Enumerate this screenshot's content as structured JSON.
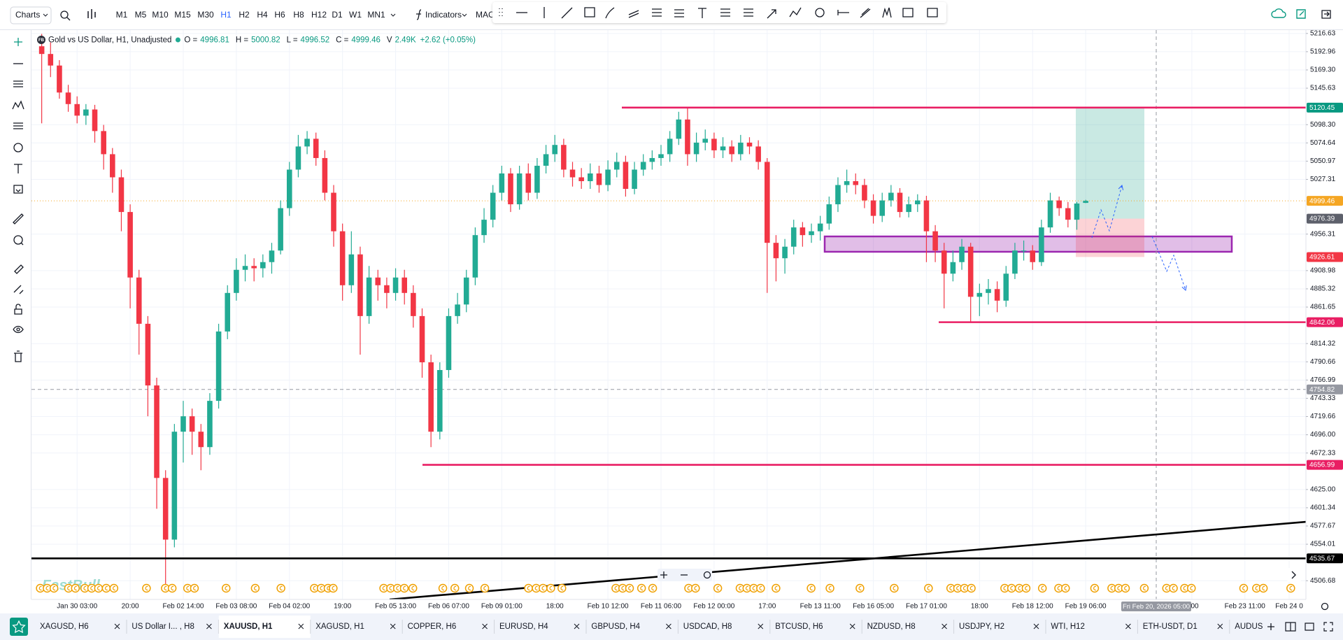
{
  "toolbar": {
    "chart_menu": "Charts",
    "indicators": "Indicators",
    "cut_item": "MAC",
    "timeframes": [
      {
        "label": "M1"
      },
      {
        "label": "M5"
      },
      {
        "label": "M10"
      },
      {
        "label": "M15"
      },
      {
        "label": "M30"
      },
      {
        "label": "H1",
        "active": true
      },
      {
        "label": "H2"
      },
      {
        "label": "H4"
      },
      {
        "label": "H6"
      },
      {
        "label": "H8"
      },
      {
        "label": "H12"
      },
      {
        "label": "D1"
      },
      {
        "label": "W1"
      },
      {
        "label": "MN1"
      }
    ]
  },
  "header": {
    "logo": "FB",
    "symbol": "Gold vs US Dollar, H1, Unadjusted",
    "o_label": "O =",
    "h_label": "H =",
    "l_label": "L =",
    "c_label": "C =",
    "v_label": "V",
    "volume": "2.49K",
    "change": "+2.62 (+0.05%)"
  },
  "watermark": "FastBull",
  "chart_data": {
    "type": "candlestick",
    "up_color": "#22ab94",
    "down_color": "#f23645",
    "grid": true,
    "ylim": [
      4482.4,
      5221.0
    ],
    "yticks": [
      5216.63,
      5192.96,
      {
        "value": 5169.3,
        "label": "5169.30"
      },
      5145.63,
      {
        "value": 5098.3,
        "label": "5098.30"
      },
      5074.64,
      5050.97,
      5027.31,
      4956.31,
      4908.98,
      4885.32,
      4861.65,
      4814.32,
      4790.66,
      4766.99,
      4743.33,
      4719.66,
      {
        "value": 4696,
        "label": "4696.00"
      },
      4672.33,
      {
        "value": 4625,
        "label": "4625.00"
      },
      4601.34,
      4577.67,
      4554.01,
      4506.68
    ],
    "categories": [
      null,
      null,
      null,
      null,
      "Jan 30 03:00",
      null,
      null,
      null,
      null,
      null,
      "20:00",
      null,
      null,
      null,
      null,
      null,
      "Feb 02 14:00",
      null,
      null,
      null,
      null,
      null,
      "Feb 03 08:00",
      null,
      null,
      null,
      null,
      null,
      "Feb 04 02:00",
      null,
      null,
      null,
      null,
      null,
      "19:00",
      null,
      null,
      null,
      null,
      null,
      "Feb 05 13:00",
      null,
      null,
      null,
      null,
      null,
      "Feb 06 07:00",
      null,
      null,
      null,
      null,
      null,
      "Feb 09 01:00",
      null,
      null,
      null,
      null,
      null,
      "18:00",
      null,
      null,
      null,
      null,
      null,
      "Feb 10 12:00",
      null,
      null,
      null,
      null,
      null,
      "Feb 11 06:00",
      null,
      null,
      null,
      null,
      null,
      "Feb 12 00:00",
      null,
      null,
      null,
      null,
      null,
      "17:00",
      null,
      null,
      null,
      null,
      null,
      "Feb 13 11:00",
      null,
      null,
      null,
      null,
      null,
      "Feb 16 05:00",
      null,
      null,
      null,
      null,
      null,
      "Feb 17 01:00",
      null,
      null,
      null,
      null,
      null,
      "18:00",
      null,
      null,
      null,
      null,
      null,
      "Feb 18 12:00",
      null,
      null,
      null,
      null,
      null,
      "Feb 19 06:00",
      null,
      null,
      null,
      null,
      null,
      null,
      null,
      null,
      null,
      null,
      null,
      "7:00",
      null,
      null,
      null,
      null,
      null,
      "Feb 23 11:00",
      null,
      null,
      null,
      null,
      "Feb 24 0",
      null
    ],
    "open": [
      5200,
      5190,
      5175,
      5140,
      5125,
      5110,
      5118,
      5090,
      5060,
      5030,
      4985,
      4900,
      4840,
      4760,
      4640,
      4560,
      4700,
      4720,
      4700,
      4680,
      4740,
      4830,
      4880,
      4910,
      4915,
      4912,
      4920,
      4935,
      4990,
      5040,
      5070,
      5080,
      5055,
      5010,
      4960,
      4890,
      4930,
      4850,
      4900,
      4890,
      4880,
      4900,
      4880,
      4850,
      4790,
      4700,
      4780,
      4850,
      4865,
      4900,
      4955,
      4975,
      5010,
      5035,
      4995,
      5035,
      5010,
      5045,
      5060,
      5072,
      5040,
      5030,
      5025,
      5035,
      5020,
      5040,
      5050,
      5015,
      5040,
      5050,
      5055,
      5060,
      5080,
      5105,
      5060,
      5075,
      5080,
      5065,
      5070,
      5060,
      5075,
      5070,
      5050,
      4945,
      4925,
      4940,
      4965,
      4955,
      4960,
      4970,
      4995,
      5020,
      5025,
      5020,
      5000,
      4980,
      5000,
      5010,
      4985,
      4995,
      5000,
      4960,
      4935,
      4905,
      4920,
      4940,
      4875,
      4880,
      4885,
      4870,
      4905,
      4935,
      4935,
      4920,
      4965,
      5000,
      4990,
      4975,
      4996.81,
      null,
      null,
      null,
      null,
      null,
      null,
      null,
      null,
      null,
      null,
      null,
      null,
      null,
      null,
      null,
      null,
      null,
      null,
      null,
      null,
      null,
      null,
      null,
      null
    ],
    "high": [
      5216,
      5205,
      5182,
      5150,
      5135,
      5125,
      5124,
      5098,
      5068,
      5040,
      4995,
      4910,
      4850,
      4770,
      4650,
      4710,
      4740,
      4730,
      4710,
      4750,
      4840,
      4890,
      4925,
      4930,
      4925,
      4930,
      4945,
      5000,
      5050,
      5085,
      5090,
      5088,
      5065,
      5020,
      4970,
      4960,
      4940,
      4915,
      4910,
      4900,
      4912,
      4910,
      4890,
      4860,
      4800,
      4790,
      4860,
      4880,
      4910,
      4965,
      4990,
      5020,
      5045,
      5042,
      5045,
      5048,
      5055,
      5072,
      5085,
      5080,
      5050,
      5042,
      5048,
      5045,
      5052,
      5062,
      5058,
      5050,
      5060,
      5065,
      5072,
      5090,
      5115,
      5120,
      5088,
      5092,
      5088,
      5082,
      5078,
      5085,
      5082,
      5078,
      5055,
      4955,
      4950,
      4975,
      4972,
      4970,
      4980,
      5005,
      5030,
      5040,
      5035,
      5028,
      5008,
      5010,
      5020,
      5016,
      5005,
      5008,
      5006,
      4968,
      4945,
      4935,
      4950,
      4945,
      4892,
      4898,
      4895,
      4915,
      4945,
      4948,
      4942,
      4975,
      5010,
      5005,
      4998,
      4998,
      5000.82,
      null,
      null,
      null,
      null,
      null,
      null,
      null,
      null,
      null,
      null,
      null,
      null,
      null,
      null,
      null,
      null,
      null,
      null,
      null,
      null,
      null,
      null,
      null,
      null
    ],
    "low": [
      5100,
      5160,
      5132,
      5115,
      5100,
      5098,
      5075,
      5040,
      5010,
      4960,
      4860,
      4800,
      4720,
      4600,
      4500,
      4550,
      4660,
      4670,
      4650,
      4670,
      4730,
      4820,
      4870,
      4895,
      4895,
      4900,
      4905,
      4930,
      4980,
      5030,
      5060,
      5045,
      5000,
      4940,
      4870,
      4880,
      4800,
      4840,
      4870,
      4860,
      4870,
      4865,
      4835,
      4770,
      4680,
      4690,
      4770,
      4840,
      4855,
      4890,
      4945,
      4965,
      5000,
      4985,
      4988,
      5000,
      5002,
      5035,
      5050,
      5030,
      5018,
      5015,
      5015,
      5010,
      5012,
      5030,
      5005,
      5008,
      5032,
      5040,
      5045,
      5050,
      5072,
      5045,
      5050,
      5065,
      5055,
      5055,
      5050,
      5052,
      5060,
      5040,
      4880,
      4895,
      4905,
      4930,
      4940,
      4945,
      4948,
      4962,
      4985,
      5010,
      5008,
      4990,
      4970,
      4972,
      4992,
      4978,
      4978,
      4985,
      4920,
      4920,
      4860,
      4895,
      4910,
      4843,
      4850,
      4865,
      4855,
      4862,
      4898,
      4922,
      4910,
      4915,
      4958,
      4980,
      4965,
      4962,
      4996.52,
      null,
      null,
      null,
      null,
      null,
      null,
      null,
      null,
      null,
      null,
      null,
      null,
      null,
      null,
      null,
      null,
      null,
      null,
      null,
      null,
      null,
      null,
      null,
      null
    ],
    "close": [
      5190,
      5175,
      5140,
      5125,
      5110,
      5118,
      5090,
      5060,
      5030,
      4985,
      4900,
      4840,
      4760,
      4640,
      4560,
      4700,
      4720,
      4700,
      4680,
      4740,
      4830,
      4880,
      4910,
      4915,
      4912,
      4920,
      4935,
      4990,
      5040,
      5070,
      5080,
      5055,
      5010,
      4960,
      4890,
      4930,
      4850,
      4900,
      4890,
      4880,
      4900,
      4880,
      4850,
      4790,
      4700,
      4780,
      4850,
      4865,
      4900,
      4955,
      4975,
      5010,
      5035,
      4995,
      5035,
      5010,
      5045,
      5060,
      5072,
      5040,
      5030,
      5025,
      5035,
      5020,
      5040,
      5050,
      5015,
      5040,
      5050,
      5055,
      5060,
      5080,
      5105,
      5060,
      5075,
      5080,
      5065,
      5070,
      5060,
      5075,
      5070,
      5050,
      4945,
      4925,
      4940,
      4965,
      4955,
      4960,
      4970,
      4995,
      5020,
      5025,
      5020,
      5000,
      4980,
      5000,
      5010,
      4985,
      4995,
      5000,
      4960,
      4935,
      4905,
      4920,
      4940,
      4875,
      4880,
      4885,
      4870,
      4905,
      4935,
      4935,
      4920,
      4965,
      5000,
      4990,
      4975,
      4996,
      4999.46,
      null,
      null,
      null,
      null,
      null,
      null,
      null,
      null,
      null,
      null,
      null,
      null,
      null,
      null,
      null,
      null,
      null,
      null,
      null,
      null,
      null,
      null,
      null,
      null
    ],
    "last_price_color": "#f5a623",
    "levels": [
      {
        "price": 5120.45,
        "color": "#e91e63",
        "label_color": "#089981"
      },
      {
        "price": 4842.06,
        "color": "#e91e63",
        "label_color": "#e91e63"
      },
      {
        "price": 4656.99,
        "color": "#e91e63",
        "label_color": "#e91e63"
      },
      {
        "price": 4535.67,
        "color": "#000000",
        "label_color": "#000000"
      }
    ],
    "zone": {
      "low": 4933.4,
      "high": 4953.3,
      "color": "#9c27b0"
    },
    "position": {
      "entry": 4976.39,
      "stop": 4926.61,
      "entry_label_color": "#5d606b",
      "stop_label_color": "#f23645"
    },
    "trendline": {
      "start": 4482.4,
      "end": 4583.1,
      "color": "#000000"
    },
    "crosshair": {
      "price": 4754.82,
      "time_label": "Fri Feb 20, 2026 05:00"
    }
  },
  "tabs": [
    {
      "symbol": "XAGUSD, H6"
    },
    {
      "symbol": "US Dollar I... , H8"
    },
    {
      "symbol": "XAUUSD, H1",
      "active": true
    },
    {
      "symbol": "XAGUSD, H1"
    },
    {
      "symbol": "COPPER, H6"
    },
    {
      "symbol": "EURUSD, H4"
    },
    {
      "symbol": "GBPUSD, H4"
    },
    {
      "symbol": "USDCAD, H8"
    },
    {
      "symbol": "BTCUSD, H6"
    },
    {
      "symbol": "NZDUSD, H8"
    },
    {
      "symbol": "USDJPY, H2"
    },
    {
      "symbol": "WTI, H12"
    },
    {
      "symbol": "ETH-USDT, D1"
    },
    {
      "symbol": "AUDUSI"
    }
  ]
}
